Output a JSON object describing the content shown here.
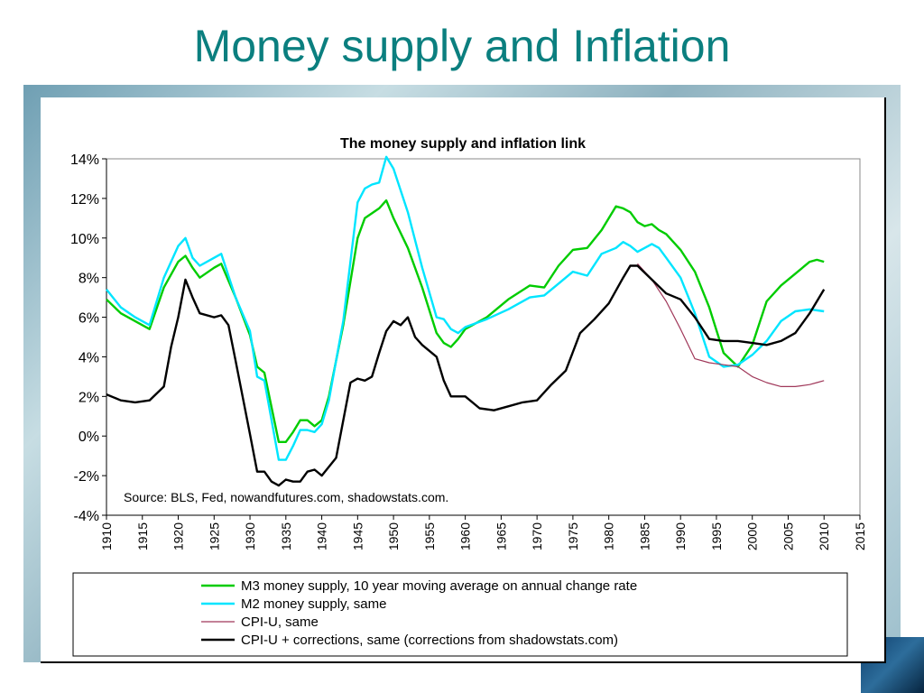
{
  "slide_title": "Money supply and Inflation",
  "colors": {
    "title": "#0b7f7f",
    "m3": "#00cc00",
    "m2": "#00e5ff",
    "cpi": "#a0385a",
    "cpi_corrected": "#000000"
  },
  "chart_data": {
    "type": "line",
    "title": "The money supply and inflation link",
    "xlabel": "",
    "ylabel": "",
    "xlim": [
      1910,
      2015
    ],
    "ylim": [
      -4,
      14
    ],
    "grid": false,
    "legend_placement": "bottom",
    "source_note": "Source: BLS, Fed, nowandfutures.com, shadowstats.com.",
    "x_ticks": [
      "1910",
      "1915",
      "1920",
      "1925",
      "1930",
      "1935",
      "1940",
      "1945",
      "1950",
      "1955",
      "1960",
      "1965",
      "1970",
      "1975",
      "1980",
      "1985",
      "1990",
      "1995",
      "2000",
      "2005",
      "2010",
      "2015"
    ],
    "y_ticks": [
      "14%",
      "12%",
      "10%",
      "8%",
      "6%",
      "4%",
      "2%",
      "0%",
      "-2%",
      "-4%"
    ],
    "series": [
      {
        "name": "M3 money supply, 10 year moving average on annual change rate",
        "color": "#00cc00",
        "x": [
          1910,
          1912,
          1914,
          1916,
          1918,
          1920,
          1921,
          1922,
          1923,
          1925,
          1926,
          1928,
          1930,
          1931,
          1932,
          1934,
          1935,
          1936,
          1937,
          1938,
          1939,
          1940,
          1941,
          1943,
          1945,
          1946,
          1948,
          1949,
          1950,
          1952,
          1954,
          1956,
          1957,
          1958,
          1959,
          1960,
          1963,
          1966,
          1969,
          1971,
          1973,
          1975,
          1977,
          1979,
          1981,
          1982,
          1983,
          1984,
          1985,
          1986,
          1987,
          1988,
          1990,
          1992,
          1994,
          1996,
          1998,
          2000,
          2002,
          2004,
          2006,
          2008,
          2009,
          2010
        ],
        "y": [
          6.9,
          6.2,
          5.8,
          5.4,
          7.5,
          8.8,
          9.1,
          8.5,
          8.0,
          8.5,
          8.7,
          7.0,
          5.1,
          3.5,
          3.2,
          -0.3,
          -0.3,
          0.2,
          0.8,
          0.8,
          0.5,
          0.8,
          2.0,
          5.6,
          10.0,
          11.0,
          11.5,
          11.9,
          11.0,
          9.5,
          7.5,
          5.2,
          4.7,
          4.5,
          4.9,
          5.4,
          6.0,
          6.9,
          7.6,
          7.5,
          8.6,
          9.4,
          9.5,
          10.4,
          11.6,
          11.5,
          11.3,
          10.8,
          10.6,
          10.7,
          10.4,
          10.2,
          9.4,
          8.3,
          6.5,
          4.2,
          3.5,
          4.6,
          6.8,
          7.6,
          8.2,
          8.8,
          8.9,
          8.8
        ]
      },
      {
        "name": "M2 money supply, same",
        "color": "#00e5ff",
        "x": [
          1910,
          1912,
          1914,
          1916,
          1918,
          1920,
          1921,
          1922,
          1923,
          1925,
          1926,
          1928,
          1930,
          1931,
          1932,
          1934,
          1935,
          1936,
          1937,
          1938,
          1939,
          1940,
          1941,
          1943,
          1945,
          1946,
          1947,
          1948,
          1949,
          1950,
          1952,
          1954,
          1956,
          1957,
          1958,
          1959,
          1960,
          1963,
          1966,
          1969,
          1971,
          1973,
          1975,
          1977,
          1979,
          1981,
          1982,
          1983,
          1984,
          1985,
          1986,
          1987,
          1988,
          1990,
          1992,
          1994,
          1996,
          1998,
          2000,
          2002,
          2004,
          2006,
          2008,
          2010
        ],
        "y": [
          7.4,
          6.5,
          6.0,
          5.6,
          8.0,
          9.6,
          10.0,
          9.0,
          8.6,
          9.0,
          9.2,
          7.0,
          5.3,
          3.0,
          2.8,
          -1.2,
          -1.2,
          -0.5,
          0.3,
          0.3,
          0.2,
          0.6,
          1.8,
          5.8,
          11.8,
          12.5,
          12.7,
          12.8,
          14.1,
          13.5,
          11.3,
          8.5,
          6.0,
          5.9,
          5.4,
          5.2,
          5.5,
          5.9,
          6.4,
          7.0,
          7.1,
          7.7,
          8.3,
          8.1,
          9.2,
          9.5,
          9.8,
          9.6,
          9.3,
          9.5,
          9.7,
          9.5,
          9.0,
          8.0,
          6.2,
          4.0,
          3.5,
          3.6,
          4.1,
          4.8,
          5.8,
          6.3,
          6.4,
          6.3
        ]
      },
      {
        "name": "CPI-U, same",
        "color": "#a0385a",
        "x": [
          1984,
          1986,
          1988,
          1990,
          1992,
          1994,
          1996,
          1998,
          2000,
          2002,
          2004,
          2006,
          2008,
          2009,
          2010
        ],
        "y": [
          8.7,
          7.9,
          6.8,
          5.4,
          3.9,
          3.7,
          3.6,
          3.5,
          3.0,
          2.7,
          2.5,
          2.5,
          2.6,
          2.7,
          2.8
        ]
      },
      {
        "name": "CPI-U + corrections, same (corrections from shadowstats.com)",
        "color": "#000000",
        "x": [
          1910,
          1912,
          1914,
          1916,
          1918,
          1919,
          1920,
          1921,
          1922,
          1923,
          1925,
          1926,
          1927,
          1928,
          1930,
          1931,
          1932,
          1933,
          1934,
          1935,
          1936,
          1937,
          1938,
          1939,
          1940,
          1942,
          1944,
          1945,
          1946,
          1947,
          1948,
          1949,
          1950,
          1951,
          1952,
          1953,
          1954,
          1956,
          1957,
          1958,
          1960,
          1962,
          1964,
          1966,
          1968,
          1970,
          1972,
          1974,
          1976,
          1978,
          1980,
          1982,
          1983,
          1984,
          1986,
          1988,
          1990,
          1992,
          1994,
          1996,
          1998,
          2000,
          2002,
          2004,
          2006,
          2008,
          2010
        ],
        "y": [
          2.1,
          1.8,
          1.7,
          1.8,
          2.5,
          4.5,
          6.0,
          7.9,
          7.0,
          6.2,
          6.0,
          6.1,
          5.6,
          3.8,
          0.1,
          -1.8,
          -1.8,
          -2.3,
          -2.5,
          -2.2,
          -2.3,
          -2.3,
          -1.8,
          -1.7,
          -2.0,
          -1.1,
          2.7,
          2.9,
          2.8,
          3.0,
          4.2,
          5.3,
          5.8,
          5.6,
          6.0,
          5.0,
          4.6,
          4.0,
          2.8,
          2.0,
          2.0,
          1.4,
          1.3,
          1.5,
          1.7,
          1.8,
          2.6,
          3.3,
          5.2,
          5.9,
          6.7,
          8.0,
          8.6,
          8.6,
          7.9,
          7.2,
          6.9,
          6.0,
          4.9,
          4.8,
          4.8,
          4.7,
          4.6,
          4.8,
          5.2,
          6.2,
          7.4
        ]
      }
    ]
  }
}
